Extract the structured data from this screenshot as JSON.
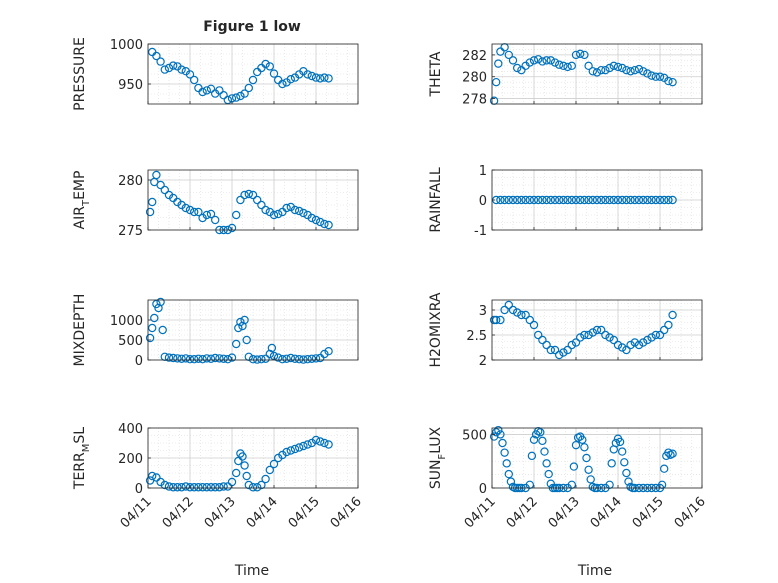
{
  "figure": {
    "title": "Figure 1 low",
    "xlabel": "Time"
  },
  "chart_data": [
    {
      "type": "scatter",
      "ylabel": "PRESSURE",
      "ylim": [
        925,
        1000
      ],
      "yticks": [
        {
          "v": 950,
          "label": "950"
        },
        {
          "v": 1000,
          "label": "1000"
        }
      ],
      "x": [
        11.1,
        11.2,
        11.3,
        11.4,
        11.5,
        11.6,
        11.7,
        11.8,
        11.9,
        12.0,
        12.1,
        12.2,
        12.3,
        12.4,
        12.5,
        12.6,
        12.7,
        12.8,
        12.9,
        13.0,
        13.1,
        13.2,
        13.3,
        13.4,
        13.5,
        13.6,
        13.7,
        13.8,
        13.9,
        14.0,
        14.1,
        14.2,
        14.3,
        14.4,
        14.5,
        14.6,
        14.7,
        14.8,
        14.9,
        15.0,
        15.1,
        15.2,
        15.3
      ],
      "y": [
        990,
        985,
        978,
        968,
        970,
        973,
        972,
        968,
        966,
        962,
        955,
        945,
        940,
        942,
        944,
        938,
        942,
        936,
        930,
        932,
        933,
        935,
        938,
        945,
        955,
        965,
        970,
        975,
        972,
        963,
        955,
        950,
        952,
        956,
        958,
        962,
        966,
        962,
        960,
        958,
        957,
        958,
        957
      ]
    },
    {
      "type": "scatter",
      "ylabel": "THETA",
      "ylim": [
        277.5,
        283
      ],
      "yticks": [
        {
          "v": 278,
          "label": "278"
        },
        {
          "v": 280,
          "label": "280"
        },
        {
          "v": 282,
          "label": "282"
        }
      ],
      "x": [
        11.05,
        11.1,
        11.15,
        11.2,
        11.3,
        11.4,
        11.5,
        11.6,
        11.7,
        11.8,
        11.9,
        12.0,
        12.1,
        12.2,
        12.3,
        12.4,
        12.5,
        12.6,
        12.7,
        12.8,
        12.9,
        13.0,
        13.1,
        13.2,
        13.3,
        13.4,
        13.5,
        13.6,
        13.7,
        13.8,
        13.9,
        14.0,
        14.1,
        14.2,
        14.3,
        14.4,
        14.5,
        14.6,
        14.7,
        14.8,
        14.9,
        15.0,
        15.1,
        15.2,
        15.3
      ],
      "y": [
        277.8,
        279.5,
        281.2,
        282.3,
        282.7,
        282.0,
        281.5,
        280.8,
        280.6,
        281.0,
        281.3,
        281.5,
        281.6,
        281.4,
        281.5,
        281.5,
        281.3,
        281.1,
        281.0,
        280.9,
        281.0,
        282.0,
        282.1,
        282.0,
        281.0,
        280.5,
        280.4,
        280.6,
        280.6,
        280.8,
        281.0,
        280.9,
        280.8,
        280.6,
        280.5,
        280.6,
        280.7,
        280.5,
        280.3,
        280.1,
        280.0,
        280.0,
        279.9,
        279.6,
        279.5
      ]
    },
    {
      "type": "scatter",
      "ylabel": "AIR_TEMP",
      "ylabel_main": "AIR",
      "ylabel_sub": "T",
      "ylabel_rest": "EMP",
      "ylim": [
        275,
        281
      ],
      "yticks": [
        {
          "v": 275,
          "label": "275"
        },
        {
          "v": 280,
          "label": "280"
        }
      ],
      "x": [
        11.05,
        11.1,
        11.15,
        11.2,
        11.3,
        11.4,
        11.5,
        11.6,
        11.7,
        11.8,
        11.9,
        12.0,
        12.1,
        12.2,
        12.3,
        12.4,
        12.5,
        12.6,
        12.7,
        12.8,
        12.9,
        13.0,
        13.1,
        13.2,
        13.3,
        13.4,
        13.5,
        13.6,
        13.7,
        13.8,
        13.9,
        14.0,
        14.1,
        14.2,
        14.3,
        14.4,
        14.5,
        14.6,
        14.7,
        14.8,
        14.9,
        15.0,
        15.1,
        15.2,
        15.3
      ],
      "y": [
        276.8,
        277.8,
        279.8,
        280.5,
        279.5,
        279.0,
        278.5,
        278.2,
        277.8,
        277.5,
        277.2,
        277.0,
        276.8,
        276.8,
        276.2,
        276.5,
        276.6,
        276.0,
        275.0,
        275.0,
        275.0,
        275.2,
        276.5,
        278.0,
        278.5,
        278.6,
        278.5,
        278.0,
        277.5,
        277.0,
        276.8,
        276.5,
        276.6,
        276.8,
        277.2,
        277.3,
        277.0,
        276.9,
        276.7,
        276.5,
        276.2,
        276.0,
        275.8,
        275.6,
        275.5
      ]
    },
    {
      "type": "scatter",
      "ylabel": "RAINFALL",
      "ylim": [
        -1,
        1
      ],
      "yticks": [
        {
          "v": -1,
          "label": "-1"
        },
        {
          "v": 0,
          "label": "0"
        },
        {
          "v": 1,
          "label": "1"
        }
      ],
      "x": [
        11.1,
        11.2,
        11.3,
        11.4,
        11.5,
        11.6,
        11.7,
        11.8,
        11.9,
        12.0,
        12.1,
        12.2,
        12.3,
        12.4,
        12.5,
        12.6,
        12.7,
        12.8,
        12.9,
        13.0,
        13.1,
        13.2,
        13.3,
        13.4,
        13.5,
        13.6,
        13.7,
        13.8,
        13.9,
        14.0,
        14.1,
        14.2,
        14.3,
        14.4,
        14.5,
        14.6,
        14.7,
        14.8,
        14.9,
        15.0,
        15.1,
        15.2,
        15.3
      ],
      "y": [
        0,
        0,
        0,
        0,
        0,
        0,
        0,
        0,
        0,
        0,
        0,
        0,
        0,
        0,
        0,
        0,
        0,
        0,
        0,
        0,
        0,
        0,
        0,
        0,
        0,
        0,
        0,
        0,
        0,
        0,
        0,
        0,
        0,
        0,
        0,
        0,
        0,
        0,
        0,
        0,
        0,
        0,
        0
      ]
    },
    {
      "type": "scatter",
      "ylabel": "MIXDEPTH",
      "ylim": [
        0,
        1500
      ],
      "yticks": [
        {
          "v": 0,
          "label": "0"
        },
        {
          "v": 500,
          "label": "500"
        },
        {
          "v": 1000,
          "label": "1000"
        }
      ],
      "x": [
        11.05,
        11.1,
        11.15,
        11.2,
        11.25,
        11.3,
        11.35,
        11.4,
        11.5,
        11.6,
        11.7,
        11.8,
        11.9,
        12.0,
        12.1,
        12.2,
        12.3,
        12.4,
        12.5,
        12.6,
        12.7,
        12.8,
        12.9,
        13.0,
        13.1,
        13.15,
        13.2,
        13.25,
        13.3,
        13.35,
        13.4,
        13.5,
        13.6,
        13.7,
        13.8,
        13.9,
        13.95,
        14.0,
        14.1,
        14.2,
        14.3,
        14.4,
        14.5,
        14.6,
        14.7,
        14.8,
        14.9,
        15.0,
        15.1,
        15.2,
        15.3
      ],
      "y": [
        550,
        800,
        1050,
        1400,
        1300,
        1450,
        750,
        80,
        60,
        50,
        40,
        30,
        40,
        20,
        20,
        30,
        20,
        40,
        30,
        50,
        40,
        30,
        20,
        60,
        400,
        800,
        950,
        850,
        1000,
        500,
        80,
        20,
        10,
        20,
        30,
        150,
        300,
        100,
        60,
        20,
        30,
        50,
        30,
        20,
        10,
        20,
        30,
        40,
        50,
        150,
        220
      ]
    },
    {
      "type": "scatter",
      "ylabel": "H2OMIXRA",
      "ylim": [
        2,
        3.2
      ],
      "yticks": [
        {
          "v": 2,
          "label": "2"
        },
        {
          "v": 2.5,
          "label": "2.5"
        },
        {
          "v": 3,
          "label": "3"
        }
      ],
      "x": [
        11.05,
        11.1,
        11.2,
        11.3,
        11.4,
        11.5,
        11.6,
        11.7,
        11.8,
        11.9,
        12.0,
        12.1,
        12.2,
        12.3,
        12.4,
        12.5,
        12.6,
        12.7,
        12.8,
        12.9,
        13.0,
        13.1,
        13.2,
        13.3,
        13.4,
        13.5,
        13.6,
        13.7,
        13.8,
        13.9,
        14.0,
        14.1,
        14.2,
        14.3,
        14.4,
        14.5,
        14.6,
        14.7,
        14.8,
        14.9,
        15.0,
        15.1,
        15.2,
        15.3
      ],
      "y": [
        2.8,
        2.8,
        2.8,
        3.0,
        3.1,
        3.0,
        2.95,
        2.9,
        2.9,
        2.8,
        2.7,
        2.5,
        2.4,
        2.3,
        2.2,
        2.2,
        2.1,
        2.15,
        2.2,
        2.3,
        2.35,
        2.45,
        2.5,
        2.5,
        2.55,
        2.6,
        2.6,
        2.5,
        2.45,
        2.4,
        2.3,
        2.25,
        2.2,
        2.3,
        2.35,
        2.3,
        2.35,
        2.4,
        2.45,
        2.5,
        2.5,
        2.6,
        2.7,
        2.9
      ]
    },
    {
      "type": "scatter",
      "ylabel": "TERR_MSL",
      "ylabel_main": "TERR",
      "ylabel_sub": "M",
      "ylabel_rest": "SL",
      "ylim": [
        0,
        400
      ],
      "yticks": [
        {
          "v": 0,
          "label": "0"
        },
        {
          "v": 200,
          "label": "200"
        },
        {
          "v": 400,
          "label": "400"
        }
      ],
      "x": [
        11.05,
        11.1,
        11.2,
        11.3,
        11.4,
        11.5,
        11.6,
        11.7,
        11.8,
        11.9,
        12.0,
        12.1,
        12.2,
        12.3,
        12.4,
        12.5,
        12.6,
        12.7,
        12.8,
        12.9,
        13.0,
        13.1,
        13.15,
        13.2,
        13.25,
        13.3,
        13.35,
        13.4,
        13.5,
        13.6,
        13.7,
        13.8,
        13.9,
        14.0,
        14.1,
        14.2,
        14.3,
        14.4,
        14.5,
        14.6,
        14.7,
        14.8,
        14.9,
        15.0,
        15.1,
        15.2,
        15.3
      ],
      "y": [
        50,
        80,
        70,
        40,
        20,
        10,
        5,
        5,
        5,
        10,
        5,
        5,
        5,
        5,
        5,
        5,
        5,
        5,
        10,
        10,
        40,
        100,
        180,
        230,
        210,
        150,
        80,
        20,
        5,
        5,
        20,
        60,
        120,
        160,
        200,
        220,
        240,
        250,
        260,
        270,
        280,
        290,
        300,
        320,
        310,
        300,
        290
      ]
    },
    {
      "type": "scatter",
      "ylabel": "SUN_FLUX",
      "ylabel_main": "SUN",
      "ylabel_sub": "F",
      "ylabel_rest": "LUX",
      "ylim": [
        0,
        560
      ],
      "yticks": [
        {
          "v": 0,
          "label": "0"
        },
        {
          "v": 500,
          "label": "500"
        }
      ],
      "x": [
        11.05,
        11.1,
        11.15,
        11.2,
        11.25,
        11.3,
        11.35,
        11.4,
        11.45,
        11.5,
        11.55,
        11.6,
        11.65,
        11.7,
        11.8,
        11.9,
        11.95,
        12.0,
        12.05,
        12.1,
        12.15,
        12.2,
        12.25,
        12.3,
        12.35,
        12.4,
        12.45,
        12.5,
        12.55,
        12.6,
        12.7,
        12.8,
        12.9,
        12.95,
        13.0,
        13.05,
        13.1,
        13.15,
        13.2,
        13.25,
        13.3,
        13.35,
        13.4,
        13.45,
        13.5,
        13.6,
        13.7,
        13.8,
        13.85,
        13.9,
        13.95,
        14.0,
        14.05,
        14.1,
        14.15,
        14.2,
        14.25,
        14.3,
        14.35,
        14.4,
        14.5,
        14.6,
        14.7,
        14.8,
        14.9,
        15.0,
        15.05,
        15.1,
        15.15,
        15.2,
        15.25,
        15.3
      ],
      "y": [
        480,
        520,
        540,
        500,
        420,
        330,
        230,
        130,
        60,
        10,
        0,
        0,
        0,
        0,
        0,
        30,
        300,
        450,
        500,
        530,
        520,
        440,
        340,
        230,
        130,
        40,
        0,
        0,
        0,
        0,
        0,
        0,
        30,
        200,
        400,
        470,
        480,
        450,
        380,
        280,
        170,
        80,
        10,
        0,
        0,
        0,
        0,
        30,
        230,
        360,
        420,
        460,
        430,
        340,
        240,
        140,
        60,
        10,
        0,
        0,
        0,
        0,
        0,
        0,
        0,
        0,
        30,
        180,
        300,
        330,
        310,
        320
      ]
    }
  ],
  "x_axis": {
    "xlim": [
      11,
      16
    ],
    "ticks": [
      {
        "v": 11,
        "label": "04/11"
      },
      {
        "v": 12,
        "label": "04/12"
      },
      {
        "v": 13,
        "label": "04/13"
      },
      {
        "v": 14,
        "label": "04/14"
      },
      {
        "v": 15,
        "label": "04/15"
      },
      {
        "v": 16,
        "label": "04/16"
      }
    ]
  },
  "style": {
    "marker_color": "#0072bd",
    "grid_color": "#dcdcdc",
    "axis_color": "#262626"
  }
}
